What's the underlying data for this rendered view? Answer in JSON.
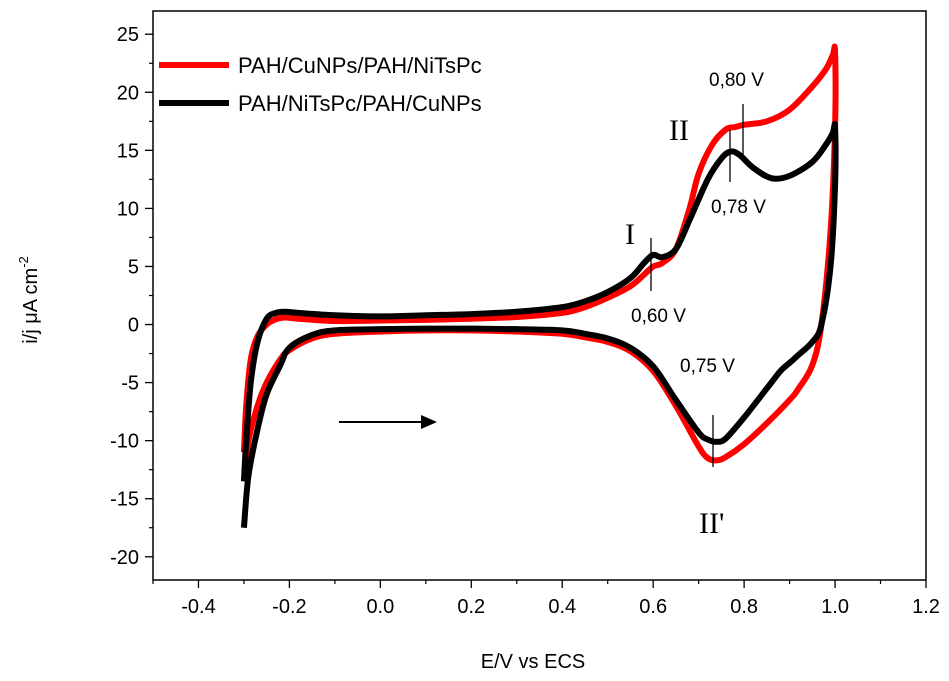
{
  "chart_data": {
    "type": "line",
    "xlabel": "E/V vs ECS",
    "ylabel_main": "i/j μA cm",
    "ylabel_sup": "-2",
    "xlim": [
      -0.5,
      1.2
    ],
    "ylim": [
      -22,
      27
    ],
    "xticks": [
      "-0.4",
      "-0.2",
      "0.0",
      "0.2",
      "0.4",
      "0.6",
      "0.8",
      "1.0",
      "1.2"
    ],
    "yticks": [
      "25",
      "20",
      "15",
      "10",
      "5",
      "0",
      "-5",
      "-10",
      "-15",
      "-20"
    ],
    "grid": false,
    "legend_position": "top-left",
    "series": [
      {
        "name": "PAH/CuNPs/PAH/NiTsPc",
        "color": "#ff0000",
        "x": [
          -0.3,
          -0.295,
          -0.285,
          -0.27,
          -0.25,
          -0.23,
          -0.21,
          -0.18,
          -0.1,
          0.0,
          0.1,
          0.2,
          0.3,
          0.4,
          0.45,
          0.5,
          0.55,
          0.58,
          0.6,
          0.62,
          0.65,
          0.68,
          0.7,
          0.73,
          0.76,
          0.78,
          0.8,
          0.85,
          0.9,
          0.95,
          0.98,
          0.995,
          1.0,
          1.0,
          0.99,
          0.97,
          0.95,
          0.92,
          0.9,
          0.85,
          0.8,
          0.76,
          0.74,
          0.72,
          0.7,
          0.65,
          0.6,
          0.55,
          0.5,
          0.45,
          0.4,
          0.3,
          0.2,
          0.1,
          0.0,
          -0.1,
          -0.15,
          -0.2,
          -0.22,
          -0.25,
          -0.27,
          -0.29,
          -0.3
        ],
        "y": [
          -11.0,
          -7.0,
          -3.0,
          -1.0,
          0.0,
          0.45,
          0.6,
          0.5,
          0.3,
          0.35,
          0.4,
          0.5,
          0.65,
          1.0,
          1.5,
          2.3,
          3.3,
          4.3,
          5.0,
          5.3,
          6.5,
          10.0,
          13.0,
          15.5,
          16.8,
          17.0,
          17.2,
          17.5,
          18.5,
          20.5,
          22.0,
          23.2,
          23.5,
          17.0,
          8.0,
          0.0,
          -3.5,
          -5.5,
          -6.5,
          -8.5,
          -10.3,
          -11.4,
          -11.7,
          -11.5,
          -10.5,
          -7.0,
          -4.0,
          -2.3,
          -1.5,
          -1.1,
          -0.8,
          -0.6,
          -0.5,
          -0.5,
          -0.6,
          -0.8,
          -1.2,
          -2.2,
          -3.0,
          -5.0,
          -7.0,
          -10.0,
          -13.5
        ]
      },
      {
        "name": "PAH/NiTsPc/PAH/CuNPs",
        "color": "#000000",
        "x": [
          -0.3,
          -0.295,
          -0.285,
          -0.27,
          -0.25,
          -0.23,
          -0.21,
          -0.18,
          -0.1,
          0.0,
          0.1,
          0.2,
          0.3,
          0.4,
          0.45,
          0.5,
          0.55,
          0.58,
          0.6,
          0.62,
          0.65,
          0.68,
          0.72,
          0.75,
          0.77,
          0.79,
          0.82,
          0.86,
          0.9,
          0.95,
          0.98,
          0.995,
          1.0,
          1.0,
          0.99,
          0.97,
          0.95,
          0.92,
          0.9,
          0.88,
          0.85,
          0.8,
          0.76,
          0.74,
          0.72,
          0.7,
          0.65,
          0.6,
          0.55,
          0.5,
          0.45,
          0.4,
          0.3,
          0.2,
          0.1,
          0.0,
          -0.1,
          -0.15,
          -0.2,
          -0.22,
          -0.25,
          -0.27,
          -0.29,
          -0.3
        ],
        "y": [
          -13.5,
          -10.0,
          -5.0,
          -1.5,
          0.5,
          1.0,
          1.1,
          1.0,
          0.8,
          0.7,
          0.8,
          0.9,
          1.1,
          1.5,
          2.0,
          2.8,
          4.0,
          5.3,
          6.0,
          5.8,
          6.5,
          9.0,
          12.5,
          14.3,
          14.9,
          14.6,
          13.5,
          12.6,
          12.8,
          14.0,
          15.5,
          16.5,
          17.0,
          12.0,
          5.0,
          0.0,
          -1.5,
          -2.6,
          -3.3,
          -4.0,
          -5.5,
          -8.0,
          -9.8,
          -10.1,
          -9.9,
          -9.3,
          -6.5,
          -3.6,
          -2.0,
          -1.2,
          -0.8,
          -0.5,
          -0.4,
          -0.35,
          -0.35,
          -0.4,
          -0.5,
          -0.9,
          -2.0,
          -3.5,
          -6.0,
          -9.0,
          -13.0,
          -17.5
        ]
      }
    ],
    "annotations": {
      "arrow": {
        "from": [
          -0.09,
          -8.7
        ],
        "to": [
          0.07,
          -8.7
        ]
      },
      "peaks": [
        {
          "text": "0,80 V",
          "x": 0.8
        },
        {
          "text": "0,78 V",
          "x": 0.77
        },
        {
          "text": "0,60 V",
          "x": 0.6
        },
        {
          "text": "0,75 V",
          "x": 0.735
        }
      ],
      "roman": [
        "I",
        "II",
        "II'"
      ]
    }
  }
}
